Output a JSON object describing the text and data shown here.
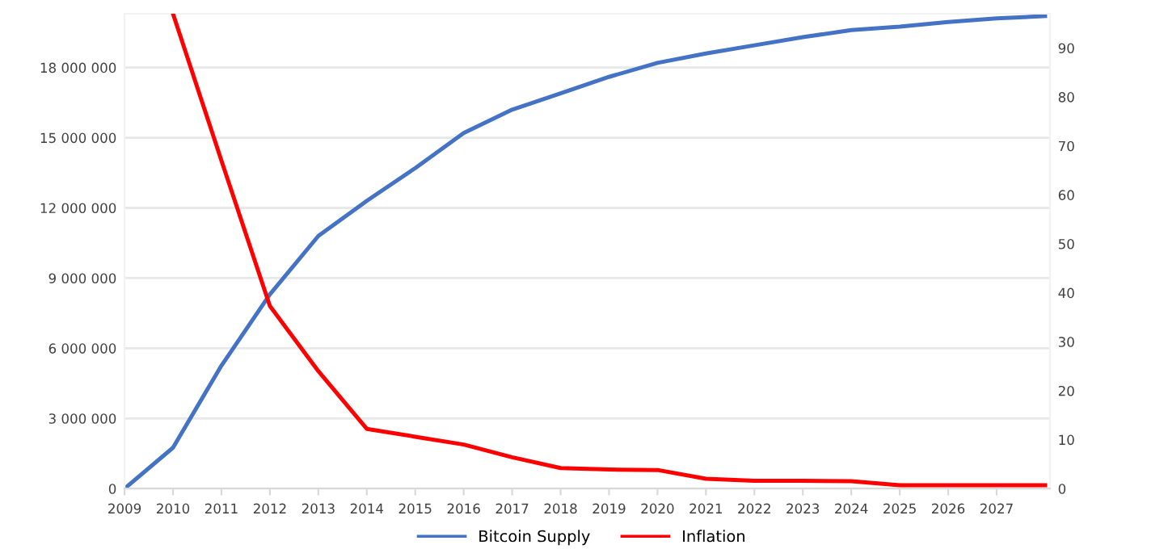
{
  "chart_data": {
    "type": "line",
    "x": [
      2009,
      2010,
      2011,
      2012,
      2013,
      2014,
      2015,
      2016,
      2017,
      2018,
      2019,
      2020,
      2021,
      2022,
      2023,
      2024,
      2025,
      2026,
      2027,
      2028
    ],
    "series": [
      {
        "name": "Bitcoin Supply",
        "color": "#4472c4",
        "values": [
          0,
          1750000,
          5260000,
          8300000,
          10800000,
          12300000,
          13700000,
          15200000,
          16200000,
          16900000,
          17600000,
          18200000,
          18600000,
          18950000,
          19300000,
          19600000,
          19750000,
          19950000,
          20100000,
          20200000
        ]
      },
      {
        "name": "Inflation",
        "color": "#ff0000",
        "axis": "y2",
        "values": [
          null,
          97,
          67,
          37.3,
          24,
          12.2,
          10.6,
          9,
          6.4,
          4.2,
          3.9,
          3.8,
          2,
          1.6,
          1.6,
          1.5,
          0.7,
          0.7,
          0.7,
          0.7
        ]
      }
    ],
    "xlim": [
      2009,
      2028.1
    ],
    "xticks": [
      2009,
      2010,
      2011,
      2012,
      2013,
      2014,
      2015,
      2016,
      2017,
      2018,
      2019,
      2020,
      2021,
      2022,
      2023,
      2024,
      2025,
      2026,
      2027
    ],
    "ylim": [
      0,
      20300000
    ],
    "yticks": [
      0,
      {
        "value": 3000000,
        "label": "3 000 000"
      },
      {
        "value": 6000000,
        "label": "6 000 000"
      },
      {
        "value": 9000000,
        "label": "9 000 000"
      },
      {
        "value": 12000000,
        "label": "12 000 000"
      },
      {
        "value": 15000000,
        "label": "15 000 000"
      },
      {
        "value": 18000000,
        "label": "18 000 000"
      }
    ],
    "y2lim": [
      0,
      97
    ],
    "y2ticks": [
      0,
      10,
      20,
      30,
      40,
      50,
      60,
      70,
      80,
      90
    ],
    "grid": "y",
    "legend": "bottom",
    "marker": "none",
    "line_style": "solid"
  }
}
